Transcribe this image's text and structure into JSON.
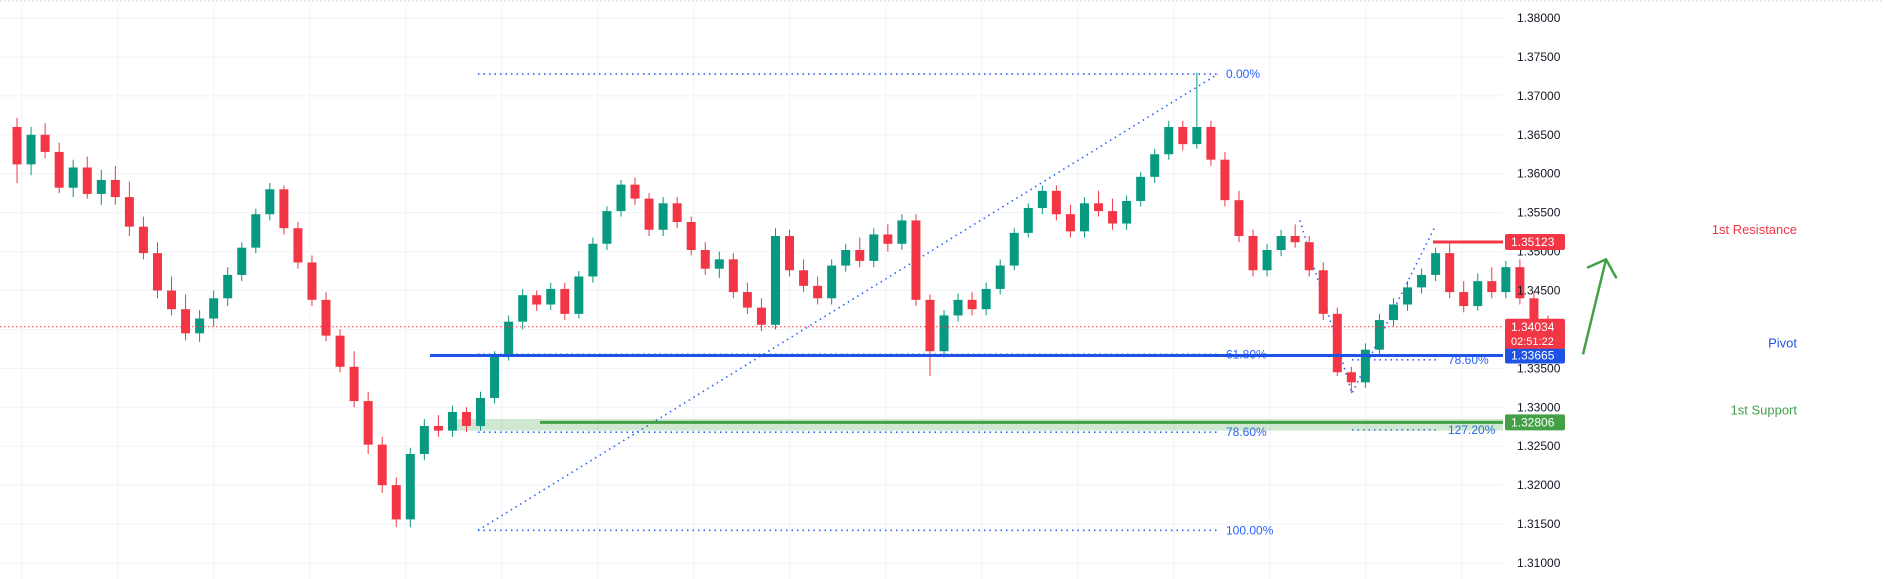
{
  "chart_data": {
    "type": "candlestick",
    "instrument_note": "",
    "y_axis": {
      "ticks": [
        "1.38000",
        "1.37500",
        "1.37000",
        "1.36500",
        "1.36000",
        "1.35500",
        "1.35000",
        "1.34500",
        "1.34000",
        "1.33500",
        "1.33000",
        "1.32500",
        "1.32000",
        "1.31500",
        "1.31000"
      ],
      "range": [
        1.3088,
        1.3825
      ],
      "side": "right"
    },
    "grid": true,
    "colors": {
      "up": "#089981",
      "down": "#f23645",
      "fib": "#2962ff",
      "resistance": "#f23645",
      "pivot": "#1e53e5",
      "support": "#43a047",
      "arrow": "#43a047",
      "last_price": "#f23645"
    },
    "levels": [
      {
        "name": "1st Resistance",
        "label": "1st Resistance",
        "price": 1.35123,
        "price_label": "1.35123",
        "color": "#f23645"
      },
      {
        "name": "Pivot",
        "label": "Pivot",
        "price": 1.33665,
        "price_label": "1.33665",
        "color": "#1e53e5"
      },
      {
        "name": "1st Support",
        "label": "1st Support",
        "price": 1.32806,
        "price_label": "1.32806",
        "color": "#43a047"
      }
    ],
    "last_price": {
      "price": 1.34034,
      "price_label": "1.34034",
      "countdown": "02:51:22"
    },
    "fib_retracement_1": {
      "levels": [
        {
          "ratio_label": "0.00%",
          "price": 1.3728
        },
        {
          "ratio_label": "61.80%",
          "price": 1.3368
        },
        {
          "ratio_label": "78.60%",
          "price": 1.3268
        },
        {
          "ratio_label": "100.00%",
          "price": 1.3142
        }
      ]
    },
    "fib_extension_2": {
      "levels": [
        {
          "ratio_label": "78.60%",
          "price": 1.3361
        },
        {
          "ratio_label": "127.20%",
          "price": 1.3271
        }
      ]
    },
    "forecast_arrow": {
      "from_price": 1.3368,
      "to_price": 1.349,
      "direction": "up"
    },
    "candles_sampled": [
      [
        1.366,
        1.3672,
        1.3588,
        1.3612
      ],
      [
        1.3612,
        1.366,
        1.3598,
        1.365
      ],
      [
        1.365,
        1.3665,
        1.362,
        1.3628
      ],
      [
        1.3628,
        1.364,
        1.3575,
        1.3582
      ],
      [
        1.3582,
        1.3618,
        1.357,
        1.3608
      ],
      [
        1.3608,
        1.3622,
        1.3568,
        1.3574
      ],
      [
        1.3574,
        1.3605,
        1.356,
        1.3592
      ],
      [
        1.3592,
        1.361,
        1.356,
        1.357
      ],
      [
        1.357,
        1.359,
        1.352,
        1.3532
      ],
      [
        1.3532,
        1.3545,
        1.349,
        1.3498
      ],
      [
        1.3498,
        1.3512,
        1.344,
        1.345
      ],
      [
        1.345,
        1.3468,
        1.3418,
        1.3426
      ],
      [
        1.3426,
        1.3445,
        1.3386,
        1.3395
      ],
      [
        1.3395,
        1.3425,
        1.3384,
        1.3414
      ],
      [
        1.3414,
        1.345,
        1.3404,
        1.344
      ],
      [
        1.344,
        1.348,
        1.343,
        1.347
      ],
      [
        1.347,
        1.3512,
        1.3462,
        1.3505
      ],
      [
        1.3505,
        1.3555,
        1.3498,
        1.3548
      ],
      [
        1.3548,
        1.3588,
        1.354,
        1.358
      ],
      [
        1.358,
        1.3585,
        1.3522,
        1.353
      ],
      [
        1.353,
        1.3538,
        1.3478,
        1.3486
      ],
      [
        1.3486,
        1.3495,
        1.343,
        1.3438
      ],
      [
        1.3438,
        1.3448,
        1.3385,
        1.3392
      ],
      [
        1.3392,
        1.34,
        1.3345,
        1.3352
      ],
      [
        1.3352,
        1.3372,
        1.33,
        1.3308
      ],
      [
        1.3308,
        1.332,
        1.324,
        1.3252
      ],
      [
        1.3252,
        1.3262,
        1.319,
        1.32
      ],
      [
        1.32,
        1.321,
        1.3146,
        1.3156
      ],
      [
        1.3156,
        1.3248,
        1.3146,
        1.324
      ],
      [
        1.324,
        1.3285,
        1.3232,
        1.3276
      ],
      [
        1.3276,
        1.329,
        1.3262,
        1.327
      ],
      [
        1.327,
        1.3302,
        1.3262,
        1.3294
      ],
      [
        1.3294,
        1.33,
        1.3268,
        1.3276
      ],
      [
        1.3276,
        1.332,
        1.327,
        1.3312
      ],
      [
        1.3312,
        1.3372,
        1.3305,
        1.3368
      ],
      [
        1.3368,
        1.3418,
        1.336,
        1.341
      ],
      [
        1.341,
        1.3452,
        1.34,
        1.3444
      ],
      [
        1.3444,
        1.345,
        1.3424,
        1.3432
      ],
      [
        1.3432,
        1.346,
        1.3425,
        1.3452
      ],
      [
        1.3452,
        1.346,
        1.3412,
        1.342
      ],
      [
        1.342,
        1.3475,
        1.3414,
        1.3468
      ],
      [
        1.3468,
        1.3518,
        1.346,
        1.351
      ],
      [
        1.351,
        1.3558,
        1.3502,
        1.3552
      ],
      [
        1.3552,
        1.3592,
        1.3545,
        1.3586
      ],
      [
        1.3586,
        1.3595,
        1.356,
        1.3568
      ],
      [
        1.3568,
        1.3575,
        1.352,
        1.3528
      ],
      [
        1.3528,
        1.357,
        1.352,
        1.3562
      ],
      [
        1.3562,
        1.357,
        1.353,
        1.3538
      ],
      [
        1.3538,
        1.3545,
        1.3495,
        1.3502
      ],
      [
        1.3502,
        1.3512,
        1.347,
        1.3478
      ],
      [
        1.3478,
        1.35,
        1.3466,
        1.349
      ],
      [
        1.349,
        1.3498,
        1.344,
        1.3448
      ],
      [
        1.3448,
        1.346,
        1.342,
        1.3428
      ],
      [
        1.3428,
        1.344,
        1.3398,
        1.3406
      ],
      [
        1.3406,
        1.353,
        1.34,
        1.352
      ],
      [
        1.352,
        1.3528,
        1.3468,
        1.3476
      ],
      [
        1.3476,
        1.349,
        1.3448,
        1.3456
      ],
      [
        1.3456,
        1.3468,
        1.3432,
        1.344
      ],
      [
        1.344,
        1.349,
        1.3432,
        1.3482
      ],
      [
        1.3482,
        1.351,
        1.3474,
        1.3502
      ],
      [
        1.3502,
        1.3518,
        1.348,
        1.3488
      ],
      [
        1.3488,
        1.353,
        1.348,
        1.3522
      ],
      [
        1.3522,
        1.3535,
        1.35,
        1.351
      ],
      [
        1.351,
        1.3548,
        1.3502,
        1.354
      ],
      [
        1.354,
        1.3548,
        1.343,
        1.3438
      ],
      [
        1.3438,
        1.3445,
        1.334,
        1.3372
      ],
      [
        1.3372,
        1.3425,
        1.3364,
        1.3418
      ],
      [
        1.3418,
        1.3446,
        1.341,
        1.3438
      ],
      [
        1.3438,
        1.3448,
        1.3418,
        1.3426
      ],
      [
        1.3426,
        1.346,
        1.3418,
        1.3452
      ],
      [
        1.3452,
        1.349,
        1.3445,
        1.3482
      ],
      [
        1.3482,
        1.353,
        1.3476,
        1.3524
      ],
      [
        1.3524,
        1.3562,
        1.3518,
        1.3556
      ],
      [
        1.3556,
        1.3585,
        1.3548,
        1.3578
      ],
      [
        1.3578,
        1.3585,
        1.354,
        1.3548
      ],
      [
        1.3548,
        1.356,
        1.3518,
        1.3526
      ],
      [
        1.3526,
        1.357,
        1.3518,
        1.3562
      ],
      [
        1.3562,
        1.3578,
        1.3545,
        1.3552
      ],
      [
        1.3552,
        1.3568,
        1.3528,
        1.3536
      ],
      [
        1.3536,
        1.3572,
        1.3528,
        1.3565
      ],
      [
        1.3565,
        1.3602,
        1.3558,
        1.3596
      ],
      [
        1.3596,
        1.3632,
        1.3588,
        1.3625
      ],
      [
        1.3625,
        1.3668,
        1.3618,
        1.366
      ],
      [
        1.366,
        1.3668,
        1.363,
        1.3638
      ],
      [
        1.3638,
        1.373,
        1.3632,
        1.366
      ],
      [
        1.366,
        1.3668,
        1.361,
        1.3618
      ],
      [
        1.3618,
        1.3628,
        1.3558,
        1.3566
      ],
      [
        1.3566,
        1.3578,
        1.3512,
        1.352
      ],
      [
        1.352,
        1.3528,
        1.3468,
        1.3476
      ],
      [
        1.3476,
        1.351,
        1.3468,
        1.3502
      ],
      [
        1.3502,
        1.3528,
        1.3494,
        1.352
      ],
      [
        1.352,
        1.3535,
        1.3505,
        1.3512
      ],
      [
        1.3512,
        1.352,
        1.3468,
        1.3476
      ],
      [
        1.3476,
        1.3486,
        1.3412,
        1.342
      ],
      [
        1.342,
        1.3428,
        1.334,
        1.3345
      ],
      [
        1.3345,
        1.3352,
        1.3318,
        1.3332
      ],
      [
        1.3332,
        1.3382,
        1.3325,
        1.3374
      ],
      [
        1.3374,
        1.342,
        1.3368,
        1.3412
      ],
      [
        1.3412,
        1.344,
        1.3404,
        1.3432
      ],
      [
        1.3432,
        1.3462,
        1.3424,
        1.3454
      ],
      [
        1.3454,
        1.3478,
        1.3446,
        1.347
      ],
      [
        1.347,
        1.3505,
        1.3462,
        1.3498
      ],
      [
        1.3498,
        1.3512,
        1.344,
        1.3448
      ],
      [
        1.3448,
        1.3462,
        1.3422,
        1.343
      ],
      [
        1.343,
        1.3472,
        1.3424,
        1.3462
      ],
      [
        1.3462,
        1.348,
        1.344,
        1.3448
      ],
      [
        1.3448,
        1.3488,
        1.344,
        1.348
      ],
      [
        1.348,
        1.349,
        1.3432,
        1.344
      ],
      [
        1.344,
        1.3448,
        1.3402,
        1.341
      ],
      [
        1.341,
        1.3418,
        1.3385,
        1.3395
      ]
    ]
  }
}
